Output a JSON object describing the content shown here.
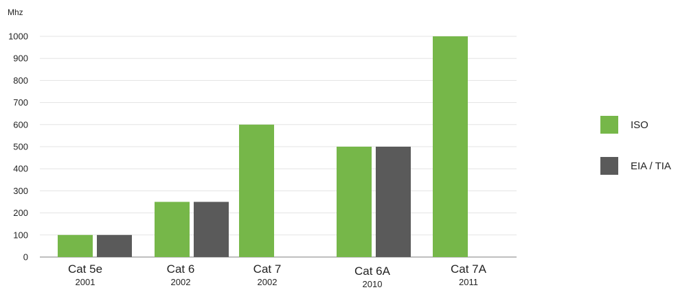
{
  "chart_data": {
    "type": "bar",
    "ylabel": "Mhz",
    "ylim": [
      0,
      1000
    ],
    "yticks": [
      0,
      100,
      200,
      300,
      400,
      500,
      600,
      700,
      800,
      900,
      1000
    ],
    "grid": true,
    "legend_position": "right",
    "categories": [
      {
        "name": "Cat 5e",
        "year": "2001"
      },
      {
        "name": "Cat 6",
        "year": "2002"
      },
      {
        "name": "Cat 7",
        "year": "2002"
      },
      {
        "name": "Cat 6A",
        "year": "2010"
      },
      {
        "name": "Cat 7A",
        "year": "2011"
      }
    ],
    "series": [
      {
        "name": "ISO",
        "color": "#76b749",
        "values": [
          100,
          250,
          600,
          500,
          1000
        ]
      },
      {
        "name": "EIA / TIA",
        "color": "#5a5a5a",
        "values": [
          100,
          250,
          null,
          500,
          null
        ]
      }
    ]
  }
}
